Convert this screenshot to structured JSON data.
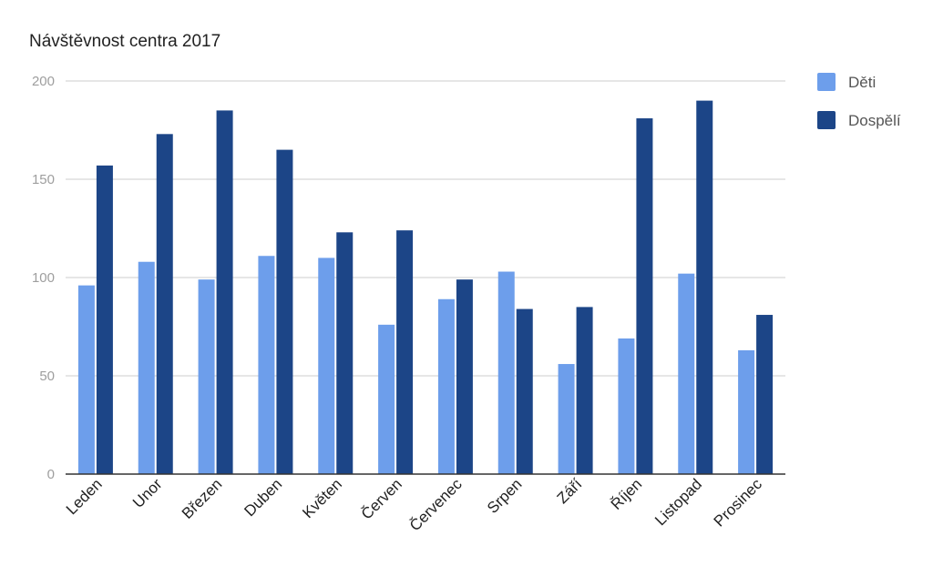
{
  "chart_data": {
    "type": "bar",
    "title": "Návštěvnost centra 2017",
    "xlabel": "",
    "ylabel": "",
    "categories": [
      "Leden",
      "Unor",
      "Březen",
      "Duben",
      "Květen",
      "Červen",
      "Červenec",
      "Srpen",
      "Září",
      "Říjen",
      "Listopad",
      "Prosinec"
    ],
    "series": [
      {
        "name": "Děti",
        "color": "#6d9eeb",
        "values": [
          96,
          108,
          99,
          111,
          110,
          76,
          89,
          103,
          56,
          69,
          102,
          63
        ]
      },
      {
        "name": "Dospělí",
        "color": "#1c4587",
        "values": [
          157,
          173,
          185,
          165,
          123,
          124,
          99,
          84,
          85,
          181,
          190,
          81
        ]
      }
    ],
    "ylim": [
      0,
      200
    ],
    "yticks": [
      "0",
      "50",
      "100",
      "150",
      "200"
    ],
    "grid": true,
    "legend_position": "right"
  }
}
